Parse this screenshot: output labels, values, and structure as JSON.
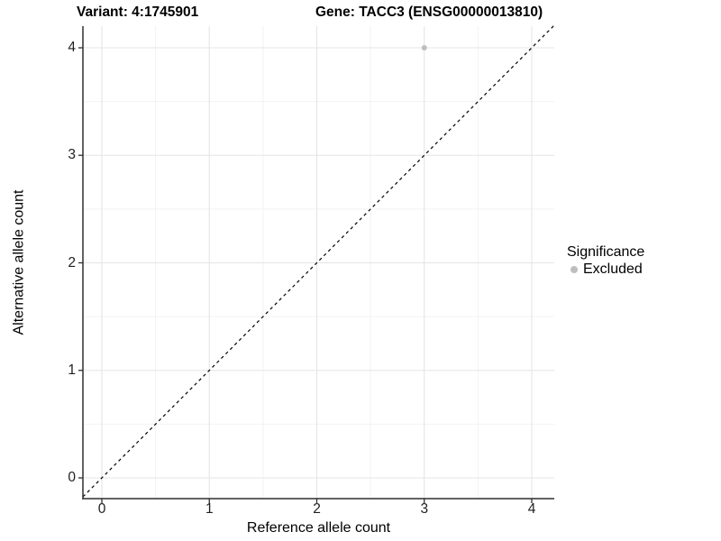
{
  "header": {
    "variant_title": "Variant: 4:1745901",
    "gene_title": "Gene: TACC3 (ENSG00000013810)"
  },
  "chart_data": {
    "type": "scatter",
    "title": "Variant: 4:1745901    Gene: TACC3 (ENSG00000013810)",
    "xlabel": "Reference allele count",
    "ylabel": "Alternative allele count",
    "x_ticks": [
      0,
      1,
      2,
      3,
      4
    ],
    "y_ticks": [
      0,
      1,
      2,
      3,
      4
    ],
    "xlim": [
      -0.2,
      4.2
    ],
    "ylim": [
      -0.2,
      4.2
    ],
    "grid": {
      "major": true,
      "minor": true,
      "major_color": "#e5e5e5",
      "minor_color": "#f2f2f2"
    },
    "reference_line": {
      "kind": "identity",
      "equation": "y = x",
      "style": "dashed",
      "color": "#000000"
    },
    "series": [
      {
        "name": "Excluded",
        "color": "#bebebe",
        "marker": "circle",
        "points": [
          [
            3,
            4
          ]
        ]
      }
    ],
    "legend": {
      "title": "Significance",
      "position": "right",
      "entries": [
        {
          "label": "Excluded",
          "color": "#bebebe",
          "marker": "circle"
        }
      ]
    }
  },
  "style": {
    "axis_line_color": "#2e2e2e",
    "tick_color": "#2e2e2e",
    "text_color": "#000000",
    "background": "#ffffff"
  }
}
